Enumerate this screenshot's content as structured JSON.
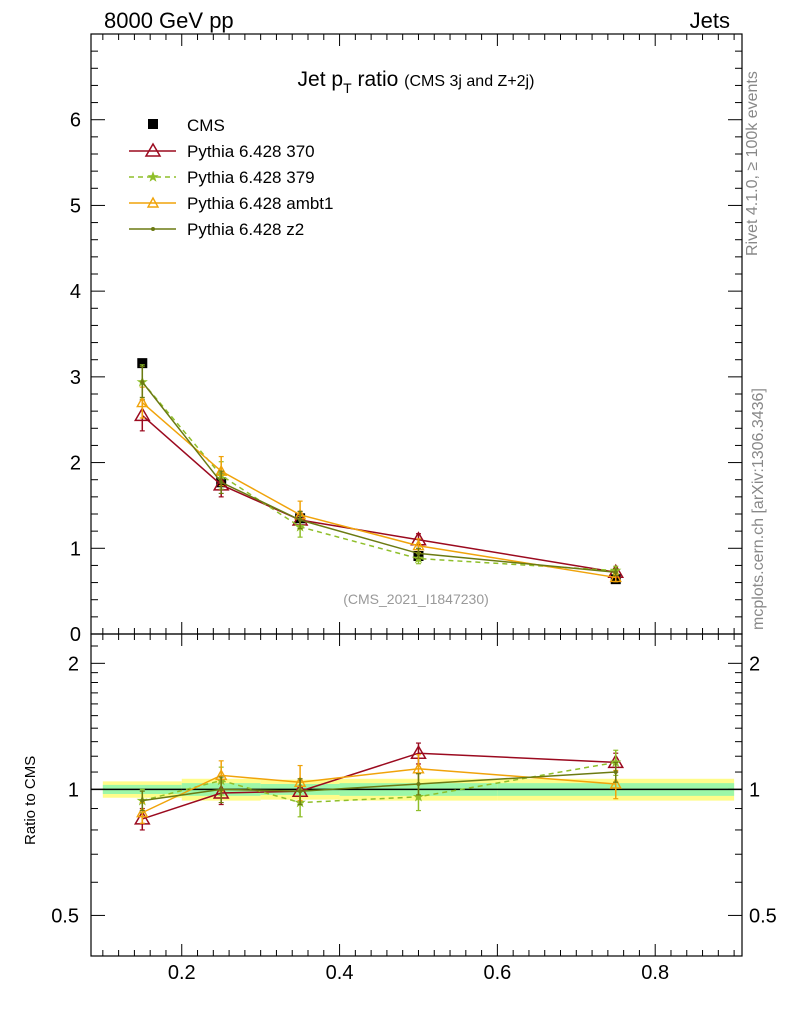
{
  "header": {
    "left": "8000 GeV pp",
    "right": "Jets"
  },
  "side_notes": {
    "rivet": "Rivet 4.1.0, ≥ 100k events",
    "mcplots": "mcplots.cern.ch [arXiv:1306.3436]"
  },
  "chart_data": [
    {
      "type": "line",
      "title": "Jet p",
      "title_sub": "T",
      "title_rest": " ratio",
      "subtitle": "(CMS 3j and Z+2j)",
      "watermark": "(CMS_2021_I1847230)",
      "xlim": [
        0.085,
        0.91
      ],
      "ylim": [
        0,
        7
      ],
      "yticks": [
        "0",
        "1",
        "2",
        "3",
        "4",
        "5",
        "6"
      ],
      "x": [
        0.15,
        0.25,
        0.35,
        0.5,
        0.75
      ],
      "data": {
        "name": "CMS",
        "values": [
          3.16,
          1.77,
          1.35,
          0.91,
          0.64
        ],
        "errors": [
          0.04,
          0.05,
          0.04,
          0.04,
          0.03
        ]
      },
      "series": [
        {
          "name": "Pythia 6.428 370",
          "color": "#9b0a1f",
          "marker": "triangle",
          "dash": "solid",
          "values": [
            2.55,
            1.74,
            1.33,
            1.1,
            0.72
          ],
          "errors": [
            0.18,
            0.14,
            0.1,
            0.07,
            0.04
          ]
        },
        {
          "name": "Pythia 6.428 379",
          "color": "#8fbf2a",
          "marker": "star",
          "dash": "dashed",
          "values": [
            2.94,
            1.85,
            1.25,
            0.88,
            0.74
          ],
          "errors": [
            0.2,
            0.16,
            0.12,
            0.06,
            0.05
          ]
        },
        {
          "name": "Pythia 6.428 ambt1",
          "color": "#f0a30a",
          "marker": "triangle-small",
          "dash": "solid",
          "values": [
            2.7,
            1.9,
            1.39,
            1.03,
            0.66
          ],
          "errors": [
            0.18,
            0.17,
            0.16,
            0.08,
            0.05
          ]
        },
        {
          "name": "Pythia 6.428 z2",
          "color": "#6b7a12",
          "marker": "dot",
          "dash": "solid",
          "values": [
            2.94,
            1.77,
            1.33,
            0.94,
            0.72
          ],
          "errors": [
            0.18,
            0.13,
            0.1,
            0.06,
            0.04
          ]
        }
      ]
    },
    {
      "type": "line",
      "ylabel": "Ratio to CMS",
      "xlim": [
        0.085,
        0.91
      ],
      "ylim_log": [
        0.4,
        2.35
      ],
      "yticks": [
        "0.5",
        "1",
        "2"
      ],
      "xticks": [
        "0.2",
        "0.4",
        "0.6",
        "0.8"
      ],
      "x": [
        0.15,
        0.25,
        0.35,
        0.5,
        0.75
      ],
      "band_edges": [
        0.1,
        0.2,
        0.3,
        0.4,
        0.6,
        0.9
      ],
      "band_stat": [
        0.025,
        0.035,
        0.03,
        0.035,
        0.035
      ],
      "band_total": [
        0.045,
        0.06,
        0.055,
        0.06,
        0.06
      ],
      "series": [
        {
          "name": "Pythia 6.428 370",
          "values": [
            0.85,
            0.98,
            0.99,
            1.22,
            1.16
          ],
          "errors": [
            0.05,
            0.06,
            0.06,
            0.07,
            0.06
          ]
        },
        {
          "name": "Pythia 6.428 379",
          "values": [
            0.94,
            1.05,
            0.93,
            0.96,
            1.16
          ],
          "errors": [
            0.06,
            0.08,
            0.07,
            0.07,
            0.08
          ]
        },
        {
          "name": "Pythia 6.428 ambt1",
          "values": [
            0.88,
            1.08,
            1.04,
            1.12,
            1.03
          ],
          "errors": [
            0.05,
            0.09,
            0.1,
            0.09,
            0.08
          ]
        },
        {
          "name": "Pythia 6.428 z2",
          "values": [
            0.94,
            1.0,
            0.99,
            1.03,
            1.1
          ],
          "errors": [
            0.05,
            0.07,
            0.07,
            0.06,
            0.06
          ]
        }
      ]
    }
  ]
}
